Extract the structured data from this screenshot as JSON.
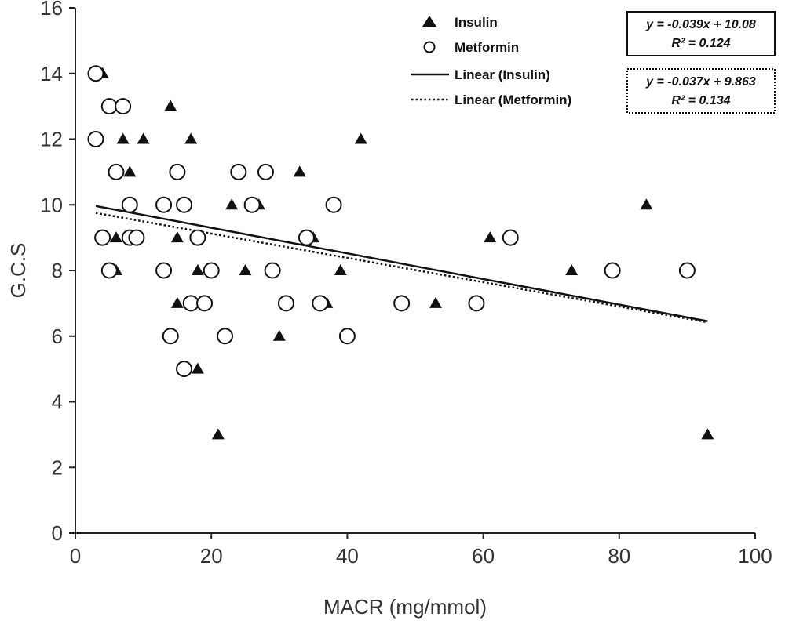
{
  "chart_data": {
    "type": "scatter",
    "xlabel": "MACR (mg/mmol)",
    "ylabel": "G.C.S",
    "xlim": [
      0,
      100
    ],
    "ylim": [
      0,
      16
    ],
    "xticks": [
      0,
      20,
      40,
      60,
      80,
      100
    ],
    "yticks": [
      0,
      2,
      4,
      6,
      8,
      10,
      12,
      14,
      16
    ],
    "xtick_labels": [
      "0",
      "20",
      "40",
      "60",
      "80",
      "100"
    ],
    "ytick_labels": [
      "0",
      "2",
      "4",
      "6",
      "8",
      "10",
      "12",
      "14",
      "16"
    ],
    "grid": false,
    "legend_position": "top-right",
    "series": [
      {
        "name": "Insulin",
        "marker": "triangle",
        "points": [
          [
            4,
            14
          ],
          [
            7,
            12
          ],
          [
            10,
            12
          ],
          [
            14,
            13
          ],
          [
            17,
            12
          ],
          [
            8,
            11
          ],
          [
            6,
            9
          ],
          [
            6,
            8
          ],
          [
            15,
            9
          ],
          [
            15,
            7
          ],
          [
            18,
            8
          ],
          [
            18,
            5
          ],
          [
            21,
            3
          ],
          [
            23,
            10
          ],
          [
            27,
            10
          ],
          [
            25,
            8
          ],
          [
            30,
            6
          ],
          [
            33,
            11
          ],
          [
            35,
            9
          ],
          [
            37,
            7
          ],
          [
            39,
            8
          ],
          [
            42,
            12
          ],
          [
            53,
            7
          ],
          [
            61,
            9
          ],
          [
            73,
            8
          ],
          [
            84,
            10
          ],
          [
            93,
            3
          ]
        ]
      },
      {
        "name": "Metformin",
        "marker": "circle-open",
        "points": [
          [
            3,
            14
          ],
          [
            3,
            12
          ],
          [
            5,
            13
          ],
          [
            7,
            13
          ],
          [
            6,
            11
          ],
          [
            8,
            10
          ],
          [
            4,
            9
          ],
          [
            5,
            8
          ],
          [
            8,
            9
          ],
          [
            9,
            9
          ],
          [
            13,
            10
          ],
          [
            15,
            11
          ],
          [
            16,
            10
          ],
          [
            13,
            8
          ],
          [
            14,
            6
          ],
          [
            16,
            5
          ],
          [
            17,
            7
          ],
          [
            18,
            9
          ],
          [
            19,
            7
          ],
          [
            20,
            8
          ],
          [
            22,
            6
          ],
          [
            24,
            11
          ],
          [
            26,
            10
          ],
          [
            28,
            11
          ],
          [
            29,
            8
          ],
          [
            31,
            7
          ],
          [
            34,
            9
          ],
          [
            36,
            7
          ],
          [
            38,
            10
          ],
          [
            40,
            6
          ],
          [
            48,
            7
          ],
          [
            59,
            7
          ],
          [
            64,
            9
          ],
          [
            79,
            8
          ],
          [
            90,
            8
          ]
        ]
      }
    ],
    "trendlines": [
      {
        "name": "Linear (Insulin)",
        "style": "solid",
        "slope": -0.039,
        "intercept": 10.08,
        "x_range": [
          3,
          93
        ],
        "equation": "y = -0.039x + 10.08",
        "r2": "R² = 0.124"
      },
      {
        "name": "Linear (Metformin)",
        "style": "dotted",
        "slope": -0.037,
        "intercept": 9.863,
        "x_range": [
          3,
          93
        ],
        "equation": "y = -0.037x + 9.863",
        "r2": "R² = 0.134"
      }
    ]
  }
}
